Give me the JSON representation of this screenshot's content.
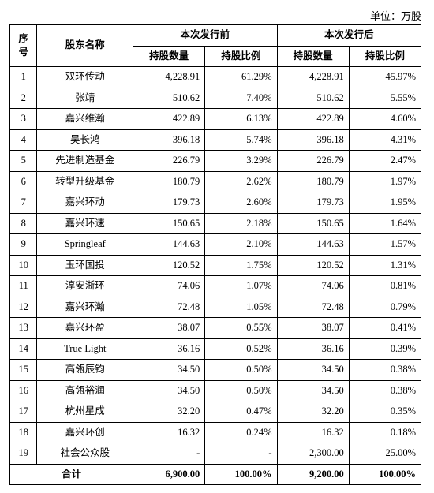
{
  "unit_label": "单位：万股",
  "headers": {
    "idx": "序号",
    "name": "股东名称",
    "before": "本次发行前",
    "after": "本次发行后",
    "qty": "持股数量",
    "pct": "持股比例"
  },
  "rows": [
    {
      "idx": "1",
      "name": "双环传动",
      "q1": "4,228.91",
      "p1": "61.29%",
      "q2": "4,228.91",
      "p2": "45.97%"
    },
    {
      "idx": "2",
      "name": "张靖",
      "q1": "510.62",
      "p1": "7.40%",
      "q2": "510.62",
      "p2": "5.55%"
    },
    {
      "idx": "3",
      "name": "嘉兴维瀚",
      "q1": "422.89",
      "p1": "6.13%",
      "q2": "422.89",
      "p2": "4.60%"
    },
    {
      "idx": "4",
      "name": "吴长鸿",
      "q1": "396.18",
      "p1": "5.74%",
      "q2": "396.18",
      "p2": "4.31%"
    },
    {
      "idx": "5",
      "name": "先进制造基金",
      "q1": "226.79",
      "p1": "3.29%",
      "q2": "226.79",
      "p2": "2.47%"
    },
    {
      "idx": "6",
      "name": "转型升级基金",
      "q1": "180.79",
      "p1": "2.62%",
      "q2": "180.79",
      "p2": "1.97%"
    },
    {
      "idx": "7",
      "name": "嘉兴环动",
      "q1": "179.73",
      "p1": "2.60%",
      "q2": "179.73",
      "p2": "1.95%"
    },
    {
      "idx": "8",
      "name": "嘉兴环速",
      "q1": "150.65",
      "p1": "2.18%",
      "q2": "150.65",
      "p2": "1.64%"
    },
    {
      "idx": "9",
      "name": "Springleaf",
      "q1": "144.63",
      "p1": "2.10%",
      "q2": "144.63",
      "p2": "1.57%"
    },
    {
      "idx": "10",
      "name": "玉环国投",
      "q1": "120.52",
      "p1": "1.75%",
      "q2": "120.52",
      "p2": "1.31%"
    },
    {
      "idx": "11",
      "name": "淳安浙环",
      "q1": "74.06",
      "p1": "1.07%",
      "q2": "74.06",
      "p2": "0.81%"
    },
    {
      "idx": "12",
      "name": "嘉兴环瀚",
      "q1": "72.48",
      "p1": "1.05%",
      "q2": "72.48",
      "p2": "0.79%"
    },
    {
      "idx": "13",
      "name": "嘉兴环盈",
      "q1": "38.07",
      "p1": "0.55%",
      "q2": "38.07",
      "p2": "0.41%"
    },
    {
      "idx": "14",
      "name": "True Light",
      "q1": "36.16",
      "p1": "0.52%",
      "q2": "36.16",
      "p2": "0.39%"
    },
    {
      "idx": "15",
      "name": "高瓴辰钧",
      "q1": "34.50",
      "p1": "0.50%",
      "q2": "34.50",
      "p2": "0.38%"
    },
    {
      "idx": "16",
      "name": "高瓴裕润",
      "q1": "34.50",
      "p1": "0.50%",
      "q2": "34.50",
      "p2": "0.38%"
    },
    {
      "idx": "17",
      "name": "杭州星成",
      "q1": "32.20",
      "p1": "0.47%",
      "q2": "32.20",
      "p2": "0.35%"
    },
    {
      "idx": "18",
      "name": "嘉兴环创",
      "q1": "16.32",
      "p1": "0.24%",
      "q2": "16.32",
      "p2": "0.18%"
    },
    {
      "idx": "19",
      "name": "社会公众股",
      "q1": "-",
      "p1": "-",
      "q2": "2,300.00",
      "p2": "25.00%"
    }
  ],
  "total": {
    "label": "合计",
    "q1": "6,900.00",
    "p1": "100.00%",
    "q2": "9,200.00",
    "p2": "100.00%"
  }
}
